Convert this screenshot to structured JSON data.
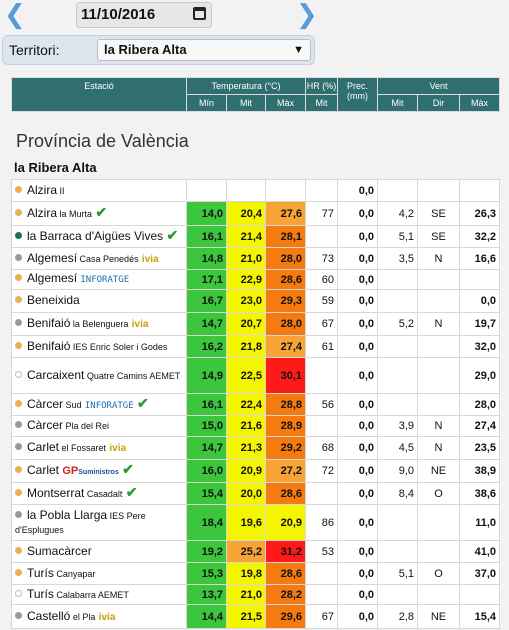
{
  "date": "11/10/2016",
  "territori": {
    "label": "Territori:",
    "value": "la Ribera Alta"
  },
  "header": {
    "estacio": "Estació",
    "temperatura": "Temperatura (°C)",
    "hr": "HR (%)",
    "prec": "Prec. (mm)",
    "vent": "Vent",
    "min": "Mín",
    "mit": "Mit",
    "max": "Màx",
    "hr_mit": "Mit",
    "v_mit": "Mit",
    "dir": "Dir",
    "v_max": "Màx"
  },
  "province": "Província de València",
  "region": "la Ribera Alta",
  "colors": {
    "green": "#3cc63c",
    "yellow": "#f5f500",
    "orange": "#f7a335",
    "dark_orange": "#f57a10",
    "red": "#ff1a1a",
    "dot_orange": "#e8b24a",
    "dot_gray": "#999999",
    "dot_teal": "#1e6b62",
    "dot_white": "#ffffff"
  },
  "rows": [
    {
      "parts": [
        "Alzira",
        " II"
      ],
      "dot": "orange",
      "bar": false,
      "h": 22,
      "min": "",
      "mit": "",
      "max": "",
      "hr": "",
      "prec": "0,0",
      "vmit": "",
      "dir": "",
      "vmax": ""
    },
    {
      "parts": [
        "Alzira",
        " la Murta"
      ],
      "dot": "orange",
      "bar": true,
      "tick": "✔",
      "h": 24,
      "min": "14,0",
      "mit": "20,4",
      "max": "27,6",
      "hr": "77",
      "prec": "0,0",
      "vmit": "4,2",
      "dir": "SE",
      "vmax": "26,3",
      "cmin": "green",
      "cmit": "yellow",
      "cmax": "orange"
    },
    {
      "parts": [
        "la Barraca d'Aigües Vives",
        ""
      ],
      "dot": "teal",
      "bar": false,
      "tick": "✔",
      "h": 22,
      "min": "16,1",
      "mit": "21,4",
      "max": "28,1",
      "hr": "",
      "prec": "0,0",
      "vmit": "5,1",
      "dir": "SE",
      "vmax": "32,2",
      "cmin": "green",
      "cmit": "yellow",
      "cmax": "dark_orange"
    },
    {
      "parts": [
        "Algemesí",
        " Casa Penedés"
      ],
      "dot": "gray",
      "bar": false,
      "ivia": "ivia",
      "h": 22,
      "min": "14,8",
      "mit": "21,0",
      "max": "28,0",
      "hr": "73",
      "prec": "0,0",
      "vmit": "3,5",
      "dir": "N",
      "vmax": "16,6",
      "cmin": "green",
      "cmit": "yellow",
      "cmax": "dark_orange"
    },
    {
      "parts": [
        "Algemesí",
        ""
      ],
      "dot": "orange",
      "bar": false,
      "infor": "INFORATGE",
      "h": 20,
      "min": "17,1",
      "mit": "22,9",
      "max": "28,6",
      "hr": "60",
      "prec": "0,0",
      "vmit": "",
      "dir": "",
      "vmax": "",
      "cmin": "green",
      "cmit": "yellow",
      "cmax": "dark_orange"
    },
    {
      "parts": [
        "Beneixida",
        ""
      ],
      "dot": "orange",
      "bar": false,
      "h": 23,
      "min": "16,7",
      "mit": "23,0",
      "max": "29,3",
      "hr": "59",
      "prec": "0,0",
      "vmit": "",
      "dir": "",
      "vmax": "0,0",
      "cmin": "green",
      "cmit": "yellow",
      "cmax": "dark_orange"
    },
    {
      "parts": [
        "Benifaió",
        " la Belenguera"
      ],
      "dot": "gray",
      "bar": false,
      "ivia": "ivia",
      "h": 23,
      "min": "14,7",
      "mit": "20,7",
      "max": "28,0",
      "hr": "67",
      "prec": "0,0",
      "vmit": "5,2",
      "dir": "N",
      "vmax": "19,7",
      "cmin": "green",
      "cmit": "yellow",
      "cmax": "dark_orange"
    },
    {
      "parts": [
        "Benifaió",
        " IES Enric Soler i Godes"
      ],
      "dot": "orange",
      "bar": false,
      "h": 22,
      "min": "16,2",
      "mit": "21,8",
      "max": "27,4",
      "hr": "61",
      "prec": "0,0",
      "vmit": "",
      "dir": "",
      "vmax": "32,0",
      "cmin": "green",
      "cmit": "yellow",
      "cmax": "orange"
    },
    {
      "parts": [
        "Carcaixent",
        " Quatre Camins AEMET"
      ],
      "dot": "white",
      "bar": false,
      "h": 36,
      "min": "14,9",
      "mit": "22,5",
      "max": "30,1",
      "hr": "",
      "prec": "0,0",
      "vmit": "",
      "dir": "",
      "vmax": "29,0",
      "cmin": "green",
      "cmit": "yellow",
      "cmax": "red"
    },
    {
      "parts": [
        "Càrcer",
        " Sud"
      ],
      "dot": "orange",
      "bar": true,
      "infor": "INFORATGE",
      "tick": "✔",
      "h": 22,
      "min": "16,1",
      "mit": "22,4",
      "max": "28,8",
      "hr": "56",
      "prec": "0,0",
      "vmit": "",
      "dir": "",
      "vmax": "28,0",
      "cmin": "green",
      "cmit": "yellow",
      "cmax": "dark_orange"
    },
    {
      "parts": [
        "Càrcer",
        " Pla del Rei"
      ],
      "dot": "gray",
      "bar": false,
      "h": 21,
      "min": "15,0",
      "mit": "21,6",
      "max": "28,9",
      "hr": "",
      "prec": "0,0",
      "vmit": "3,9",
      "dir": "N",
      "vmax": "27,4",
      "cmin": "green",
      "cmit": "yellow",
      "cmax": "dark_orange"
    },
    {
      "parts": [
        "Carlet",
        " el Fossaret"
      ],
      "dot": "gray",
      "bar": false,
      "ivia": "ivia",
      "h": 23,
      "min": "14,7",
      "mit": "21,3",
      "max": "29,2",
      "hr": "68",
      "prec": "0,0",
      "vmit": "4,5",
      "dir": "N",
      "vmax": "23,5",
      "cmin": "green",
      "cmit": "yellow",
      "cmax": "dark_orange"
    },
    {
      "parts": [
        "Carlet",
        ""
      ],
      "dot": "orange",
      "bar": true,
      "gp": "GP",
      "gpsub": "Suministros",
      "tick": "✔",
      "h": 23,
      "min": "16,0",
      "mit": "20,9",
      "max": "27,2",
      "hr": "72",
      "prec": "0,0",
      "vmit": "9,0",
      "dir": "NE",
      "vmax": "38,9",
      "cmin": "green",
      "cmit": "yellow",
      "cmax": "orange"
    },
    {
      "parts": [
        "Montserrat",
        " Casadalt"
      ],
      "dot": "orange",
      "bar": true,
      "tick": "✔",
      "h": 22,
      "min": "15,4",
      "mit": "20,0",
      "max": "28,6",
      "hr": "",
      "prec": "0,0",
      "vmit": "8,4",
      "dir": "O",
      "vmax": "38,6",
      "cmin": "green",
      "cmit": "yellow",
      "cmax": "dark_orange"
    },
    {
      "parts": [
        "la Pobla Llarga",
        " IES Pere d'Esplugues"
      ],
      "dot": "gray",
      "bar": false,
      "h": 36,
      "min": "18,4",
      "mit": "19,6",
      "max": "20,9",
      "hr": "86",
      "prec": "0,0",
      "vmit": "",
      "dir": "",
      "vmax": "11,0",
      "cmin": "green",
      "cmit": "yellow",
      "cmax": "yellow"
    },
    {
      "parts": [
        "Sumacàrcer",
        ""
      ],
      "dot": "orange",
      "bar": false,
      "h": 22,
      "min": "19,2",
      "mit": "25,2",
      "max": "31,2",
      "hr": "53",
      "prec": "0,0",
      "vmit": "",
      "dir": "",
      "vmax": "41,0",
      "cmin": "green",
      "cmit": "orange",
      "cmax": "red"
    },
    {
      "parts": [
        "Turís",
        " Canyapar"
      ],
      "dot": "orange",
      "bar": false,
      "h": 22,
      "min": "15,3",
      "mit": "19,8",
      "max": "28,6",
      "hr": "",
      "prec": "0,0",
      "vmit": "5,1",
      "dir": "O",
      "vmax": "37,0",
      "cmin": "green",
      "cmit": "yellow",
      "cmax": "dark_orange"
    },
    {
      "parts": [
        "Turís",
        " Calabarra AEMET"
      ],
      "dot": "white",
      "bar": false,
      "h": 20,
      "min": "13,7",
      "mit": "21,0",
      "max": "28,2",
      "hr": "",
      "prec": "0,0",
      "vmit": "",
      "dir": "",
      "vmax": "",
      "cmin": "green",
      "cmit": "yellow",
      "cmax": "dark_orange"
    },
    {
      "parts": [
        "Castelló",
        " el Pla"
      ],
      "dot": "gray",
      "bar": false,
      "ivia": "ivia",
      "h": 24,
      "min": "14,4",
      "mit": "21,5",
      "max": "29,6",
      "hr": "67",
      "prec": "0,0",
      "vmit": "2,8",
      "dir": "NE",
      "vmax": "15,4",
      "cmin": "green",
      "cmit": "yellow",
      "cmax": "dark_orange"
    }
  ]
}
